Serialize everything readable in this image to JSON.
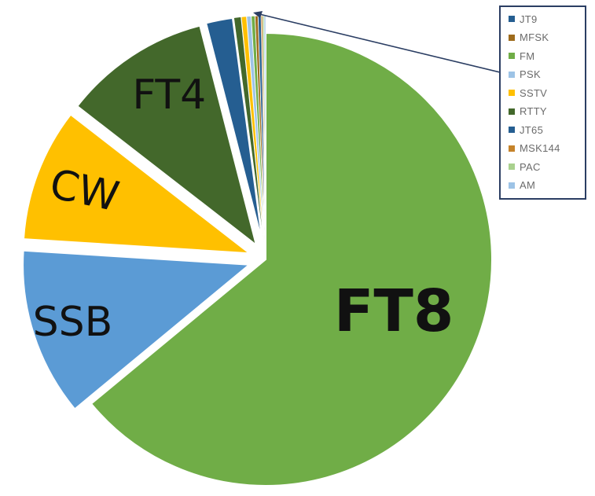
{
  "chart_data": {
    "type": "pie",
    "slices": [
      {
        "label": "FT8",
        "value": 64.0,
        "color": "#70ad47",
        "exploded": false,
        "show_label": true
      },
      {
        "label": "SSB",
        "value": 12.0,
        "color": "#5b9bd5",
        "exploded": true,
        "show_label": true
      },
      {
        "label": "CW",
        "value": 9.5,
        "color": "#ffc000",
        "exploded": true,
        "show_label": true
      },
      {
        "label": "FT4",
        "value": 10.5,
        "color": "#43682b",
        "exploded": true,
        "show_label": true
      },
      {
        "label": "JT65",
        "value": 1.9,
        "color": "#255e91",
        "exploded": true,
        "show_label": false
      },
      {
        "label": "RTTY",
        "value": 0.5,
        "color": "#43682b",
        "exploded": true,
        "show_label": false
      },
      {
        "label": "SSTV",
        "value": 0.35,
        "color": "#ffc000",
        "exploded": true,
        "show_label": false
      },
      {
        "label": "PSK",
        "value": 0.3,
        "color": "#9dc3e6",
        "exploded": true,
        "show_label": false
      },
      {
        "label": "FM",
        "value": 0.25,
        "color": "#70ad47",
        "exploded": true,
        "show_label": false
      },
      {
        "label": "MFSK",
        "value": 0.2,
        "color": "#9e6b1c",
        "exploded": true,
        "show_label": false
      },
      {
        "label": "JT9",
        "value": 0.2,
        "color": "#255e91",
        "exploded": true,
        "show_label": false
      },
      {
        "label": "MSK144",
        "value": 0.1,
        "color": "#c5832a",
        "exploded": true,
        "show_label": false
      },
      {
        "label": "PAC",
        "value": 0.1,
        "color": "#a9d18e",
        "exploded": true,
        "show_label": false
      },
      {
        "label": "AM",
        "value": 0.1,
        "color": "#9dc3e6",
        "exploded": true,
        "show_label": false
      }
    ],
    "legend": {
      "placement": "top-right",
      "items": [
        {
          "label": "JT9",
          "color": "#255e91"
        },
        {
          "label": "MFSK",
          "color": "#9e6b1c"
        },
        {
          "label": "FM",
          "color": "#70ad47"
        },
        {
          "label": "PSK",
          "color": "#9dc3e6"
        },
        {
          "label": "SSTV",
          "color": "#ffc000"
        },
        {
          "label": "RTTY",
          "color": "#43682b"
        },
        {
          "label": "JT65",
          "color": "#255e91"
        },
        {
          "label": "MSK144",
          "color": "#c5832a"
        },
        {
          "label": "PAC",
          "color": "#a9d18e"
        },
        {
          "label": "AM",
          "color": "#9dc3e6"
        }
      ]
    },
    "title": "",
    "callout_arrow": true
  }
}
